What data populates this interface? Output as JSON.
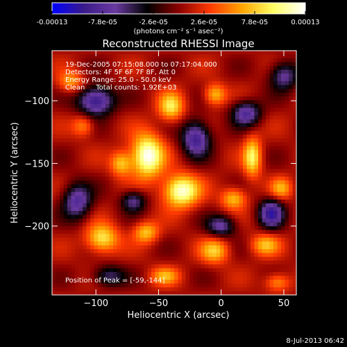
{
  "colorbar": {
    "tick_labels": [
      "-0.00013",
      "-7.8e-05",
      "-2.6e-05",
      "2.6e-05",
      "7.8e-05",
      "0.00013"
    ],
    "unit_label": "(photons cm⁻² s⁻¹ asec⁻²)",
    "colors": [
      "#0000ff",
      "#3a1a8a",
      "#6a3aa0",
      "#000000",
      "#8b0000",
      "#ff3a00",
      "#ffa500",
      "#ffff66",
      "#ffffff"
    ],
    "range": [
      -0.00013,
      0.00013
    ]
  },
  "chart_data": {
    "type": "heatmap",
    "title": "Reconstructed RHESSI Image",
    "xlabel": "Heliocentric X (arcsec)",
    "ylabel": "Heliocentric Y (arcsec)",
    "xlim": [
      -135,
      60
    ],
    "ylim": [
      -255,
      -60
    ],
    "xticks": [
      -100,
      -50,
      0,
      50
    ],
    "yticks": [
      -100,
      -150,
      -200
    ],
    "xtick_labels": [
      "−100",
      "−50",
      "0",
      "50"
    ],
    "ytick_labels": [
      "−100",
      "−150",
      "−200"
    ],
    "annotations": [
      "19-Dec-2005 07:15:08.000 to 07:17:04.000",
      "Detectors: 4F 5F 6F 7F 8F, Att 0",
      "Energy Range: 25.0 - 50.0 keV",
      "Clean     Total counts: 1.92E+03"
    ],
    "peak_label": "Position of Peak = [-59,-144]",
    "peak": [
      -59,
      -144
    ],
    "sources": [
      {
        "x": -59,
        "y": -144,
        "amp": 1.0,
        "sx": 9,
        "sy": 12
      },
      {
        "x": -32,
        "y": -172,
        "amp": 0.95,
        "sx": 10,
        "sy": 9
      },
      {
        "x": 10,
        "y": -178,
        "amp": 0.55,
        "sx": 7,
        "sy": 6
      },
      {
        "x": -40,
        "y": -105,
        "amp": 0.65,
        "sx": 7,
        "sy": 8
      },
      {
        "x": -5,
        "y": -95,
        "amp": 0.55,
        "sx": 6,
        "sy": 6
      },
      {
        "x": 25,
        "y": -145,
        "amp": 0.7,
        "sx": 5,
        "sy": 11
      },
      {
        "x": -80,
        "y": -150,
        "amp": 0.55,
        "sx": 6,
        "sy": 7
      },
      {
        "x": -95,
        "y": -210,
        "amp": 0.7,
        "sx": 9,
        "sy": 8
      },
      {
        "x": -60,
        "y": -205,
        "amp": 0.55,
        "sx": 7,
        "sy": 6
      },
      {
        "x": -5,
        "y": -220,
        "amp": 0.55,
        "sx": 8,
        "sy": 7
      },
      {
        "x": 35,
        "y": -215,
        "amp": 0.5,
        "sx": 8,
        "sy": 6
      },
      {
        "x": 48,
        "y": -170,
        "amp": 0.45,
        "sx": 6,
        "sy": 6
      },
      {
        "x": -120,
        "y": -85,
        "amp": 0.45,
        "sx": 7,
        "sy": 6
      },
      {
        "x": -45,
        "y": -240,
        "amp": 0.45,
        "sx": 8,
        "sy": 5
      },
      {
        "x": 45,
        "y": -245,
        "amp": 0.45,
        "sx": 7,
        "sy": 5
      },
      {
        "x": -110,
        "y": -120,
        "amp": 0.4,
        "sx": 6,
        "sy": 6
      },
      {
        "x": -100,
        "y": -100,
        "amp": -0.9,
        "sx": 10,
        "sy": 8
      },
      {
        "x": -20,
        "y": -130,
        "amp": -0.8,
        "sx": 8,
        "sy": 10
      },
      {
        "x": 20,
        "y": -110,
        "amp": -0.7,
        "sx": 8,
        "sy": 7
      },
      {
        "x": -115,
        "y": -180,
        "amp": -0.7,
        "sx": 8,
        "sy": 10
      },
      {
        "x": -70,
        "y": -180,
        "amp": -0.55,
        "sx": 7,
        "sy": 6
      },
      {
        "x": 40,
        "y": -190,
        "amp": -0.8,
        "sx": 7,
        "sy": 8
      },
      {
        "x": 0,
        "y": -200,
        "amp": -0.6,
        "sx": 8,
        "sy": 6
      },
      {
        "x": -90,
        "y": -240,
        "amp": -0.5,
        "sx": 9,
        "sy": 6
      },
      {
        "x": 50,
        "y": -80,
        "amp": -0.6,
        "sx": 8,
        "sy": 8
      }
    ]
  },
  "footer": {
    "timestamp": "8-Jul-2013 06:42"
  }
}
